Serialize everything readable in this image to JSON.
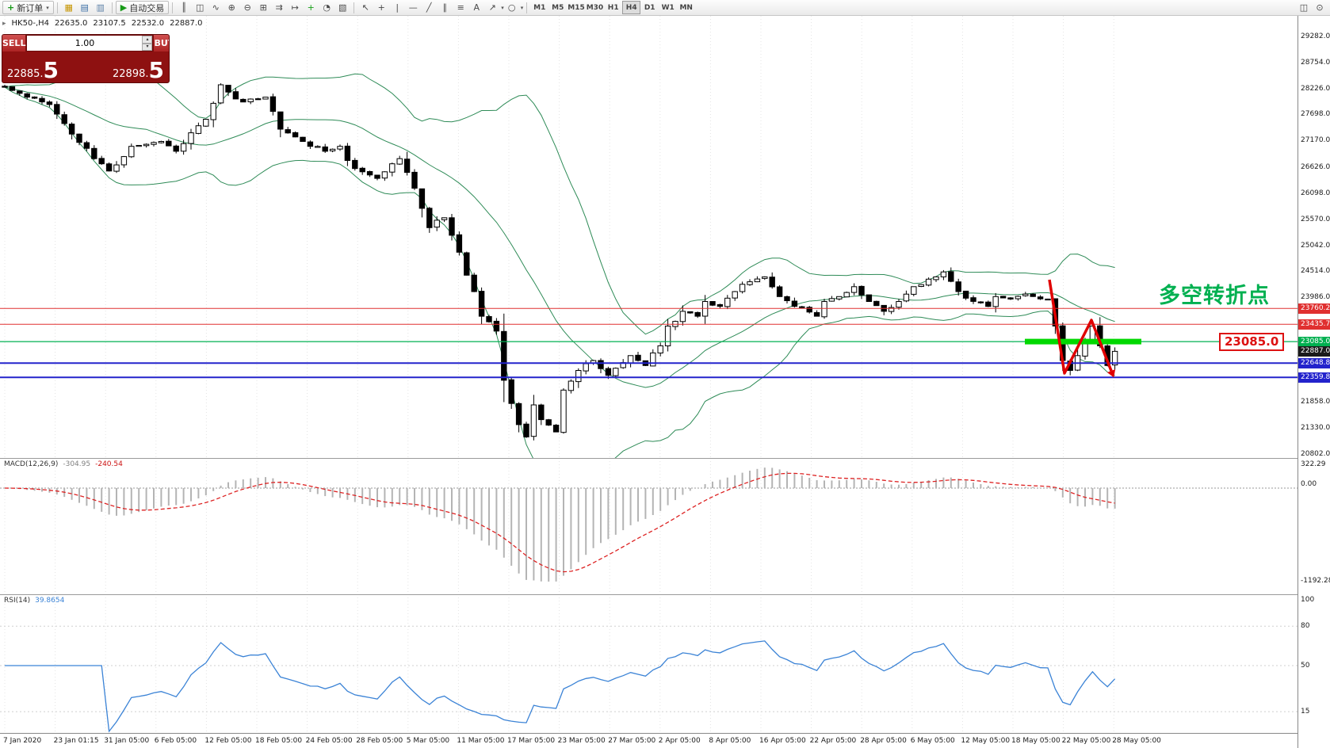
{
  "toolbar": {
    "new_order_label": "新订单",
    "auto_trading_label": "自动交易",
    "file_icons": [
      {
        "name": "new-chart-icon",
        "glyph": "▦",
        "color": "#c69500"
      },
      {
        "name": "profiles-icon",
        "glyph": "▤",
        "color": "#3a6ea5"
      },
      {
        "name": "market-watch-icon",
        "glyph": "▥",
        "color": "#5b7fa6"
      }
    ],
    "chart_icons": [
      {
        "name": "bar-chart-icon",
        "glyph": "║"
      },
      {
        "name": "candlestick-chart-icon",
        "glyph": "◫"
      },
      {
        "name": "line-chart-icon",
        "glyph": "∿"
      },
      {
        "name": "zoom-in-icon",
        "glyph": "⊕"
      },
      {
        "name": "zoom-out-icon",
        "glyph": "⊖"
      },
      {
        "name": "tile-windows-icon",
        "glyph": "⊞"
      },
      {
        "name": "auto-scroll-icon",
        "glyph": "⇉"
      },
      {
        "name": "chart-shift-icon",
        "glyph": "↦"
      },
      {
        "name": "indicators-icon",
        "glyph": "+",
        "color": "#18a018"
      },
      {
        "name": "periods-icon",
        "glyph": "◔"
      },
      {
        "name": "templates-icon",
        "glyph": "▧"
      }
    ],
    "tool_icons": [
      {
        "name": "cursor-icon",
        "glyph": "↖"
      },
      {
        "name": "crosshair-icon",
        "glyph": "+"
      },
      {
        "name": "vertical-line-icon",
        "glyph": "|"
      },
      {
        "name": "horizontal-line-icon",
        "glyph": "—"
      },
      {
        "name": "trendline-icon",
        "glyph": "╱"
      },
      {
        "name": "equidistant-channel-icon",
        "glyph": "∥"
      },
      {
        "name": "fibonacci-icon",
        "glyph": "≡"
      },
      {
        "name": "text-icon",
        "glyph": "A"
      },
      {
        "name": "arrows-icon",
        "glyph": "↗",
        "caret": true
      },
      {
        "name": "shapes-icon",
        "glyph": "○",
        "caret": true
      }
    ],
    "timeframes": {
      "items": [
        "M1",
        "M5",
        "M15",
        "M30",
        "H1",
        "H4",
        "D1",
        "W1",
        "MN"
      ],
      "active": "H4"
    },
    "right_icons": [
      {
        "name": "chart-window-icon",
        "glyph": "◫"
      },
      {
        "name": "search-icon",
        "glyph": "⊙"
      }
    ]
  },
  "chart_header": {
    "symbol_period": "HK50-,H4",
    "open": "22635.0",
    "high": "23107.5",
    "low": "22532.0",
    "close": "22887.0"
  },
  "trade_panel": {
    "sell_label": "SELL",
    "buy_label": "BUY",
    "volume": "1.00",
    "sell_price": "22885.5",
    "buy_price": "22898.5",
    "sell_int": "22885.",
    "sell_big": "5",
    "buy_int": "22898.",
    "buy_big": "5"
  },
  "price_axis": {
    "labels": [
      "29282.0",
      "28754.0",
      "28226.0",
      "27698.0",
      "27170.0",
      "26626.0",
      "26098.0",
      "25570.0",
      "25042.0",
      "24514.0",
      "23986.0",
      "21858.0",
      "21330.0",
      "20802.0"
    ],
    "tags": [
      {
        "text": "23760.2",
        "bg": "#e03030"
      },
      {
        "text": "23435.7",
        "bg": "#e03030"
      },
      {
        "text": "23085.0",
        "bg": "#00b050"
      },
      {
        "text": "22887.0",
        "bg": "#1a1a1a"
      },
      {
        "text": "22648.8",
        "bg": "#2323cc"
      },
      {
        "text": "22359.8",
        "bg": "#2323cc"
      }
    ]
  },
  "levels": [
    {
      "price": "23760.2",
      "color": "#e03030",
      "width": 1
    },
    {
      "price": "23435.7",
      "color": "#e03030",
      "width": 1
    },
    {
      "price": "23085.0",
      "color": "#00b050",
      "width": 1.2
    },
    {
      "price": "22648.8",
      "color": "#2323cc",
      "width": 2
    },
    {
      "price": "22359.8",
      "color": "#2323cc",
      "width": 2
    }
  ],
  "annotations": {
    "turning_point_text": "多空转折点",
    "support_label": "23085.0"
  },
  "macd": {
    "name": "MACD(12,26,9)",
    "value": "-304.95",
    "signal": "-240.54",
    "axis_labels": [
      "322.29",
      "0.00",
      "-1192.28"
    ]
  },
  "rsi": {
    "name": "RSI(14)",
    "value": "39.8654",
    "axis_labels": [
      "100",
      "80",
      "50",
      "15"
    ]
  },
  "time_axis": [
    "7 Jan 2020",
    "23 Jan 01:15",
    "31 Jan 05:00",
    "6 Feb 05:00",
    "12 Feb 05:00",
    "18 Feb 05:00",
    "24 Feb 05:00",
    "28 Feb 05:00",
    "5 Mar 05:00",
    "11 Mar 05:00",
    "17 Mar 05:00",
    "23 Mar 05:00",
    "27 Mar 05:00",
    "2 Apr 05:00",
    "8 Apr 05:00",
    "16 Apr 05:00",
    "22 Apr 05:00",
    "28 Apr 05:00",
    "6 May 05:00",
    "12 May 05:00",
    "18 May 05:00",
    "22 May 05:00",
    "28 May 05:00"
  ],
  "colors": {
    "bull": "#ffffff",
    "bear": "#000000",
    "wick": "#000000",
    "bollinger": "#2e8b57",
    "macd_hist": "#b4b4b4",
    "macd_signal": "#dd2222",
    "rsi_line": "#3b83d6",
    "highlight_green": "#00d800",
    "annotation_red": "#e00000",
    "annotation_green": "#00b050"
  },
  "chart_data": {
    "type": "candlestick",
    "symbol": "HK50-",
    "timeframe": "H4",
    "ohlc": {
      "open": 22635.0,
      "high": 23107.5,
      "low": 22532.0,
      "close": 22887.0
    },
    "close": "22887.0",
    "candles": 150,
    "seed": 11,
    "waypoints": [
      [
        0,
        28250
      ],
      [
        3,
        28050
      ],
      [
        6,
        27900
      ],
      [
        9,
        27300
      ],
      [
        12,
        26800
      ],
      [
        14,
        26550
      ],
      [
        17,
        27050
      ],
      [
        21,
        27150
      ],
      [
        23,
        26950
      ],
      [
        27,
        27600
      ],
      [
        29,
        28300
      ],
      [
        32,
        27950
      ],
      [
        35,
        28050
      ],
      [
        37,
        27400
      ],
      [
        40,
        27150
      ],
      [
        43,
        26950
      ],
      [
        45,
        27050
      ],
      [
        47,
        26600
      ],
      [
        50,
        26400
      ],
      [
        53,
        26800
      ],
      [
        55,
        26200
      ],
      [
        57,
        25400
      ],
      [
        59,
        25600
      ],
      [
        61,
        24900
      ],
      [
        63,
        24100
      ],
      [
        64,
        23600
      ],
      [
        66,
        23300
      ],
      [
        67,
        22300
      ],
      [
        69,
        21400
      ],
      [
        70,
        21150
      ],
      [
        71,
        21800
      ],
      [
        72,
        21500
      ],
      [
        74,
        21250
      ],
      [
        75,
        22100
      ],
      [
        77,
        22500
      ],
      [
        79,
        22700
      ],
      [
        81,
        22400
      ],
      [
        84,
        22800
      ],
      [
        86,
        22600
      ],
      [
        88,
        23000
      ],
      [
        89,
        23400
      ],
      [
        91,
        23700
      ],
      [
        93,
        23600
      ],
      [
        94,
        23900
      ],
      [
        96,
        23800
      ],
      [
        98,
        24100
      ],
      [
        100,
        24300
      ],
      [
        102,
        24400
      ],
      [
        104,
        24000
      ],
      [
        106,
        23800
      ],
      [
        109,
        23600
      ],
      [
        110,
        23900
      ],
      [
        112,
        24000
      ],
      [
        114,
        24200
      ],
      [
        116,
        23900
      ],
      [
        118,
        23700
      ],
      [
        120,
        23900
      ],
      [
        122,
        24200
      ],
      [
        125,
        24400
      ],
      [
        126,
        24500
      ],
      [
        128,
        24100
      ],
      [
        130,
        23900
      ],
      [
        132,
        23800
      ],
      [
        133,
        24000
      ],
      [
        135,
        23950
      ],
      [
        137,
        24050
      ],
      [
        138,
        24000
      ],
      [
        140,
        23950
      ],
      [
        141,
        23400
      ],
      [
        142,
        22700
      ],
      [
        143,
        22500
      ],
      [
        144,
        22800
      ],
      [
        145,
        23100
      ],
      [
        146,
        23400
      ],
      [
        147,
        23000
      ],
      [
        148,
        22600
      ],
      [
        149,
        22887
      ]
    ],
    "indicators": [
      {
        "name": "Bollinger Bands",
        "period": 20,
        "deviation": 2
      },
      {
        "name": "MACD",
        "fast": 12,
        "slow": 26,
        "signal": 9,
        "value": -304.95,
        "signal_value": -240.54,
        "range": [
          -1192.28,
          322.29
        ]
      },
      {
        "name": "RSI",
        "period": 14,
        "value": 39.8654
      }
    ]
  }
}
